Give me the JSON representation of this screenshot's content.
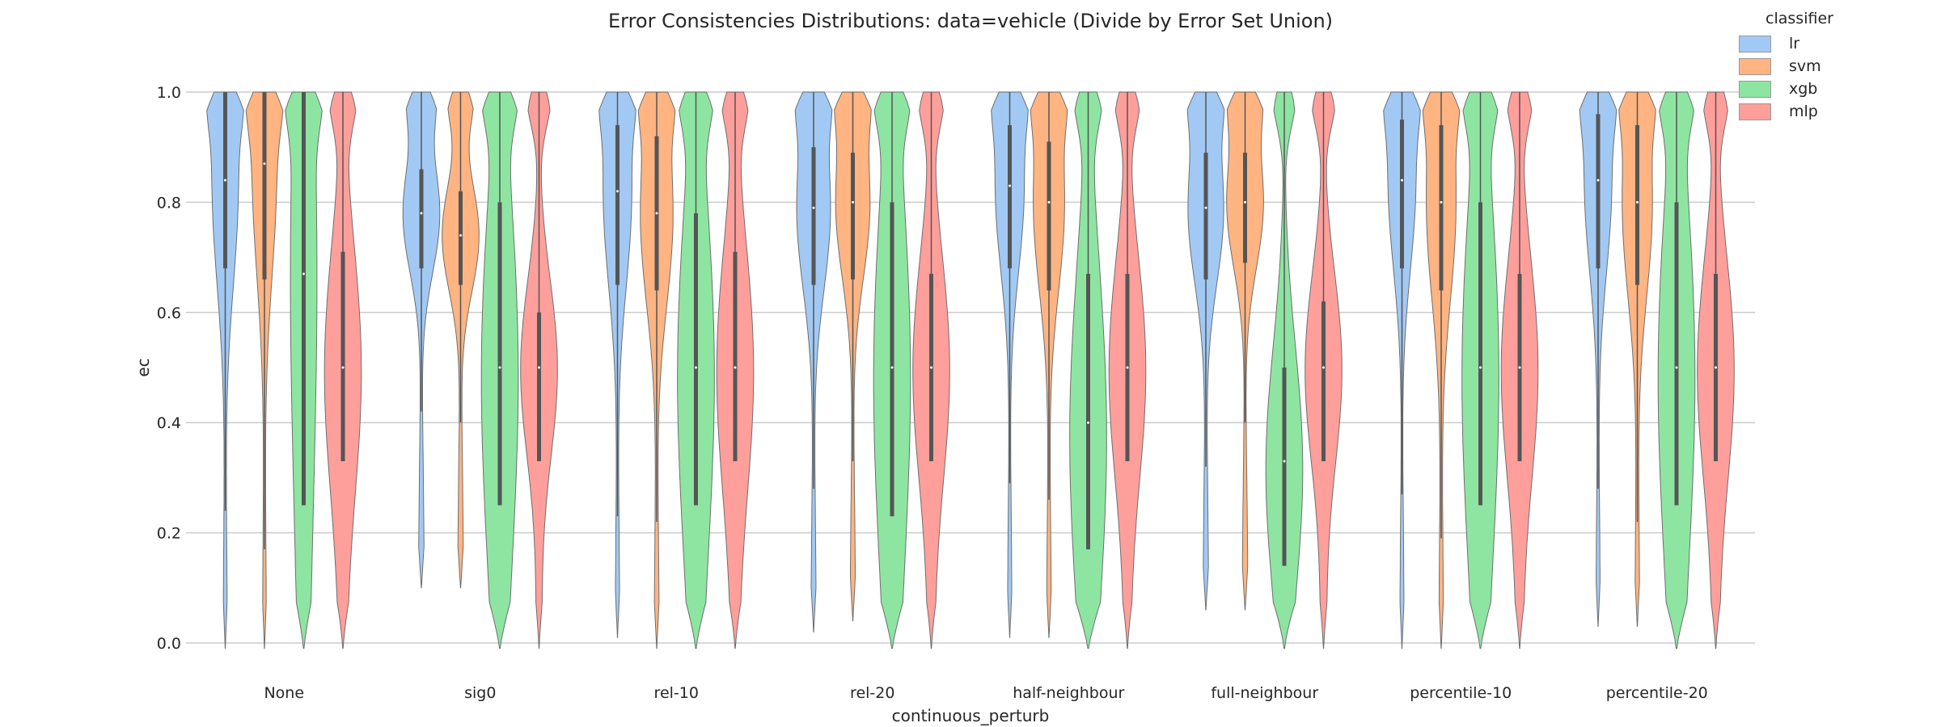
{
  "chart_data": {
    "type": "violin",
    "title": "Error Consistencies Distributions: data=vehicle (Divide by Error Set Union)",
    "xlabel": "continuous_perturb",
    "ylabel": "ec",
    "ylim": [
      0.0,
      1.0
    ],
    "yticks": [
      "0.0",
      "0.2",
      "0.4",
      "0.6",
      "0.8",
      "1.0"
    ],
    "grid": "horizontal",
    "legend": {
      "title": "classifier",
      "placement": "top-right"
    },
    "categories": [
      "None",
      "sig0",
      "rel-10",
      "rel-20",
      "half-neighbour",
      "full-neighbour",
      "percentile-10",
      "percentile-20"
    ],
    "series": [
      {
        "name": "lr",
        "color": "#a1c9f4",
        "stats": [
          {
            "min": -0.01,
            "q1": 0.68,
            "median": 0.84,
            "q3": 1.0,
            "max": 1.0,
            "wlo": 0.24
          },
          {
            "min": 0.1,
            "q1": 0.68,
            "median": 0.78,
            "q3": 0.86,
            "max": 1.0,
            "wlo": 0.42
          },
          {
            "min": 0.01,
            "q1": 0.65,
            "median": 0.82,
            "q3": 0.94,
            "max": 1.0,
            "wlo": 0.23
          },
          {
            "min": 0.02,
            "q1": 0.65,
            "median": 0.79,
            "q3": 0.9,
            "max": 1.0,
            "wlo": 0.28
          },
          {
            "min": 0.01,
            "q1": 0.68,
            "median": 0.83,
            "q3": 0.94,
            "max": 1.0,
            "wlo": 0.29
          },
          {
            "min": 0.06,
            "q1": 0.66,
            "median": 0.79,
            "q3": 0.89,
            "max": 1.0,
            "wlo": 0.32
          },
          {
            "min": -0.01,
            "q1": 0.68,
            "median": 0.84,
            "q3": 0.95,
            "max": 1.0,
            "wlo": 0.27
          },
          {
            "min": 0.03,
            "q1": 0.68,
            "median": 0.84,
            "q3": 0.96,
            "max": 1.0,
            "wlo": 0.28
          }
        ]
      },
      {
        "name": "svm",
        "color": "#ffb482",
        "stats": [
          {
            "min": -0.01,
            "q1": 0.66,
            "median": 0.87,
            "q3": 1.0,
            "max": 1.0,
            "wlo": 0.17
          },
          {
            "min": 0.1,
            "q1": 0.65,
            "median": 0.74,
            "q3": 0.82,
            "max": 1.0,
            "wlo": 0.4
          },
          {
            "min": -0.01,
            "q1": 0.64,
            "median": 0.78,
            "q3": 0.92,
            "max": 1.0,
            "wlo": 0.22
          },
          {
            "min": 0.04,
            "q1": 0.66,
            "median": 0.8,
            "q3": 0.89,
            "max": 1.0,
            "wlo": 0.33
          },
          {
            "min": 0.01,
            "q1": 0.64,
            "median": 0.8,
            "q3": 0.91,
            "max": 1.0,
            "wlo": 0.26
          },
          {
            "min": 0.06,
            "q1": 0.69,
            "median": 0.8,
            "q3": 0.89,
            "max": 1.0,
            "wlo": 0.4
          },
          {
            "min": -0.01,
            "q1": 0.64,
            "median": 0.8,
            "q3": 0.94,
            "max": 1.0,
            "wlo": 0.19
          },
          {
            "min": 0.03,
            "q1": 0.65,
            "median": 0.8,
            "q3": 0.94,
            "max": 1.0,
            "wlo": 0.22
          }
        ]
      },
      {
        "name": "xgb",
        "color": "#8de5a1",
        "stats": [
          {
            "min": -0.01,
            "q1": 0.25,
            "median": 0.67,
            "q3": 1.0,
            "max": 1.0,
            "wlo": 0.25
          },
          {
            "min": -0.01,
            "q1": 0.25,
            "median": 0.5,
            "q3": 0.8,
            "max": 1.0,
            "wlo": 0.25
          },
          {
            "min": -0.01,
            "q1": 0.25,
            "median": 0.5,
            "q3": 0.78,
            "max": 1.0,
            "wlo": 0.25
          },
          {
            "min": -0.01,
            "q1": 0.23,
            "median": 0.5,
            "q3": 0.8,
            "max": 1.0,
            "wlo": 0.23
          },
          {
            "min": -0.01,
            "q1": 0.17,
            "median": 0.4,
            "q3": 0.67,
            "max": 1.0,
            "wlo": 0.17
          },
          {
            "min": -0.01,
            "q1": 0.14,
            "median": 0.33,
            "q3": 0.5,
            "max": 1.0,
            "wlo": 0.14
          },
          {
            "min": -0.01,
            "q1": 0.25,
            "median": 0.5,
            "q3": 0.8,
            "max": 1.0,
            "wlo": 0.25
          },
          {
            "min": -0.01,
            "q1": 0.25,
            "median": 0.5,
            "q3": 0.8,
            "max": 1.0,
            "wlo": 0.25
          }
        ]
      },
      {
        "name": "mlp",
        "color": "#ff9f9b",
        "stats": [
          {
            "min": -0.01,
            "q1": 0.33,
            "median": 0.5,
            "q3": 0.71,
            "max": 1.0,
            "wlo": 0.33
          },
          {
            "min": -0.01,
            "q1": 0.33,
            "median": 0.5,
            "q3": 0.6,
            "max": 1.0,
            "wlo": 0.33
          },
          {
            "min": -0.01,
            "q1": 0.33,
            "median": 0.5,
            "q3": 0.71,
            "max": 1.0,
            "wlo": 0.33
          },
          {
            "min": -0.01,
            "q1": 0.33,
            "median": 0.5,
            "q3": 0.67,
            "max": 1.0,
            "wlo": 0.33
          },
          {
            "min": -0.01,
            "q1": 0.33,
            "median": 0.5,
            "q3": 0.67,
            "max": 1.0,
            "wlo": 0.33
          },
          {
            "min": -0.01,
            "q1": 0.33,
            "median": 0.5,
            "q3": 0.62,
            "max": 1.0,
            "wlo": 0.33
          },
          {
            "min": -0.01,
            "q1": 0.33,
            "median": 0.5,
            "q3": 0.67,
            "max": 1.0,
            "wlo": 0.33
          },
          {
            "min": -0.01,
            "q1": 0.33,
            "median": 0.5,
            "q3": 0.67,
            "max": 1.0,
            "wlo": 0.33
          }
        ]
      }
    ]
  }
}
